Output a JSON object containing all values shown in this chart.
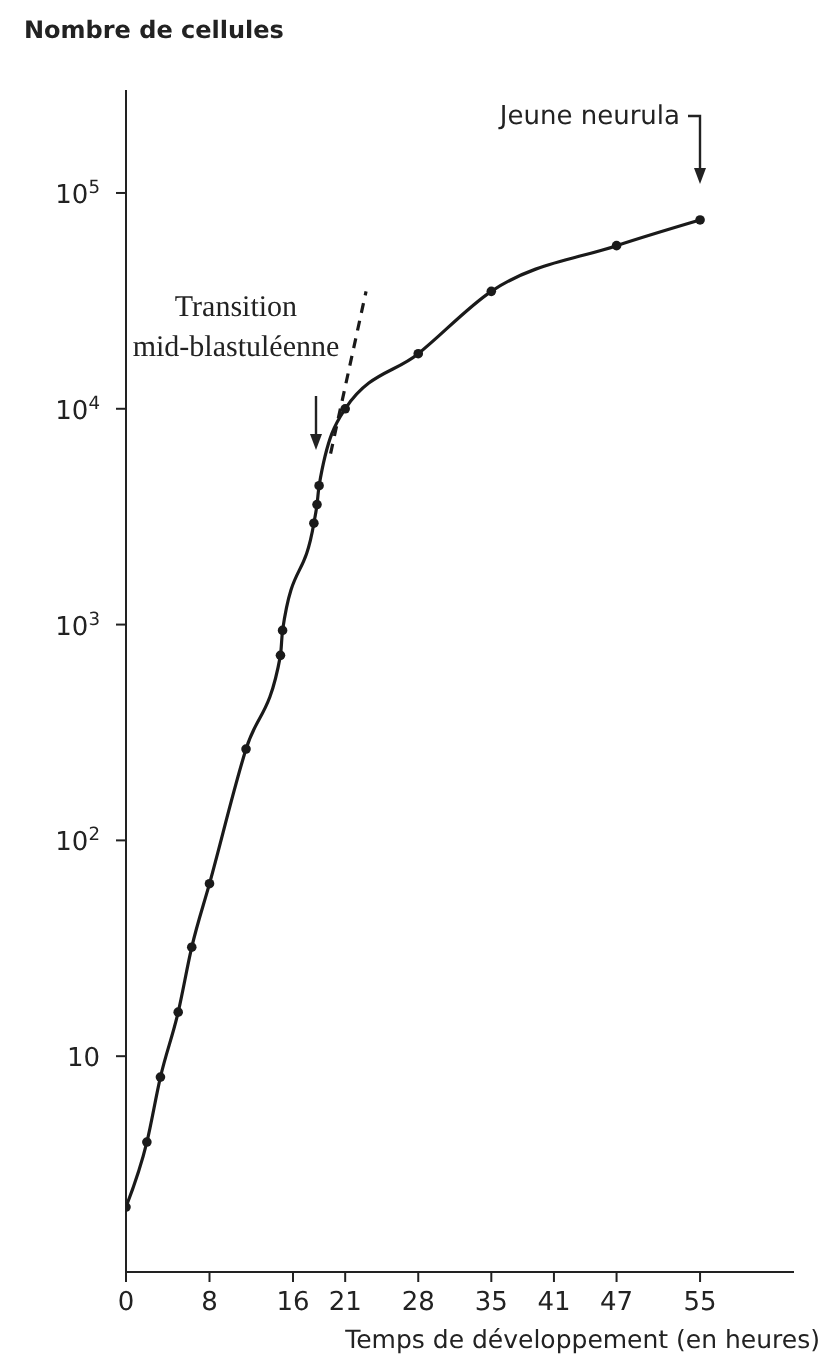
{
  "chart_data": {
    "type": "line",
    "ylabel": "Nombre de cellules",
    "xlabel": "Temps de développement (en heures)",
    "xlim": [
      0,
      64
    ],
    "xticks": [
      0,
      8,
      16,
      21,
      28,
      35,
      41,
      47,
      55
    ],
    "ylim": [
      1,
      300000
    ],
    "yticks": [
      10,
      {
        "value": 100,
        "label": "10$^{2}$"
      },
      {
        "value": 1000,
        "label": "10$^{3}$"
      },
      {
        "value": 10000,
        "label": "10$^{4}$"
      },
      {
        "value": 100000,
        "label": "10$^{5}$"
      }
    ],
    "log": "y",
    "marker": "circle",
    "series": [
      {
        "color": "#1a1a1a",
        "x": [
          0,
          2,
          3.3,
          5,
          6.3,
          8,
          11.5,
          14.8,
          15,
          18,
          18.3,
          18.5,
          21,
          28,
          35,
          47,
          55
        ],
        "values": [
          2,
          4,
          8,
          16,
          32,
          63,
          265,
          720,
          940,
          2950,
          3600,
          4400,
          10000,
          18000,
          35000,
          57000,
          75000
        ],
        "line_style": "solid"
      },
      {
        "color": "#1a1a1a",
        "x": [
          19.6,
          23
        ],
        "values": [
          6200,
          35000
        ],
        "line_style": "dashed",
        "marker": "none"
      }
    ],
    "annotations": [
      "Jeune neurula",
      "Transition\nmid-blastuléenne"
    ]
  }
}
